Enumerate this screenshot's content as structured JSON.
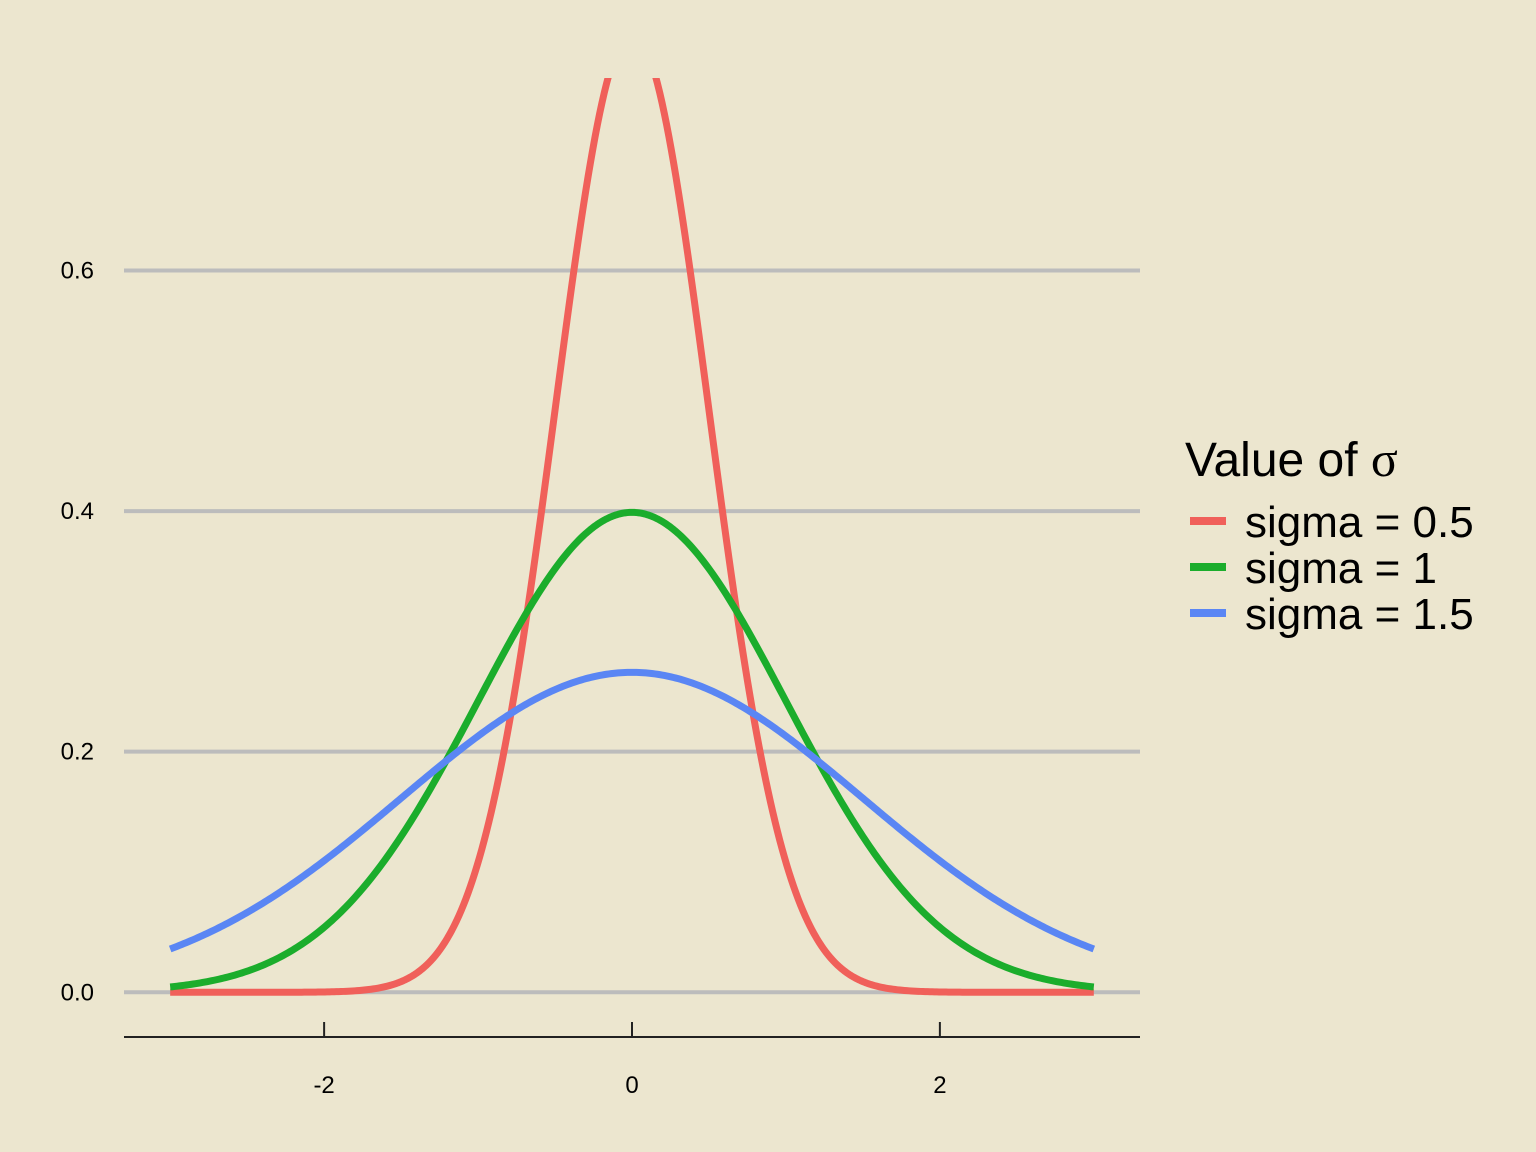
{
  "chart_data": {
    "type": "line",
    "title": "",
    "xlabel": "",
    "ylabel": "",
    "xlim": [
      -3.3,
      3.3
    ],
    "ylim": [
      -0.038,
      0.76
    ],
    "x_range": [
      -3,
      3
    ],
    "x_ticks": [
      -2,
      0,
      2
    ],
    "x_tick_labels": [
      "-2",
      "0",
      "2"
    ],
    "y_ticks": [
      0.0,
      0.2,
      0.4,
      0.6
    ],
    "y_tick_labels": [
      "0.0",
      "0.2",
      "0.4",
      "0.6"
    ],
    "grid": "horizontal major gridlines",
    "legend": {
      "placement": "right",
      "title_prefix": "Value of ",
      "title_symbol": "σ"
    },
    "series": [
      {
        "name": "sigma = 0.5",
        "sigma": 0.5,
        "color": "#f0605a",
        "x": [
          -3.0,
          -2.5,
          -2.0,
          -1.5,
          -1.2,
          -1.0,
          -0.8,
          -0.6,
          -0.4,
          -0.2,
          -0.18,
          0.18,
          0.2,
          0.4,
          0.6,
          0.8,
          1.0,
          1.2,
          1.5,
          2.0,
          2.5,
          3.0
        ],
        "y": [
          0.0,
          0.0,
          0.0003,
          0.0089,
          0.0448,
          0.108,
          0.222,
          0.389,
          0.579,
          0.737,
          0.749,
          0.749,
          0.737,
          0.579,
          0.389,
          0.222,
          0.108,
          0.0448,
          0.0089,
          0.0003,
          0.0,
          0.0
        ]
      },
      {
        "name": "sigma = 1",
        "sigma": 1,
        "color": "#1bad2c",
        "x": [
          -3.0,
          -2.5,
          -2.0,
          -1.5,
          -1.0,
          -0.5,
          0.0,
          0.5,
          1.0,
          1.5,
          2.0,
          2.5,
          3.0
        ],
        "y": [
          0.0044,
          0.0175,
          0.054,
          0.1295,
          0.242,
          0.352,
          0.3989,
          0.352,
          0.242,
          0.1295,
          0.054,
          0.0175,
          0.0044
        ]
      },
      {
        "name": "sigma = 1.5",
        "sigma": 1.5,
        "color": "#5a86f4",
        "x": [
          -3.0,
          -2.5,
          -2.0,
          -1.5,
          -1.0,
          -0.5,
          0.0,
          0.5,
          1.0,
          1.5,
          2.0,
          2.5,
          3.0
        ],
        "y": [
          0.036,
          0.0665,
          0.1093,
          0.1613,
          0.213,
          0.2516,
          0.266,
          0.2516,
          0.213,
          0.1613,
          0.1093,
          0.0665,
          0.036
        ]
      }
    ]
  }
}
